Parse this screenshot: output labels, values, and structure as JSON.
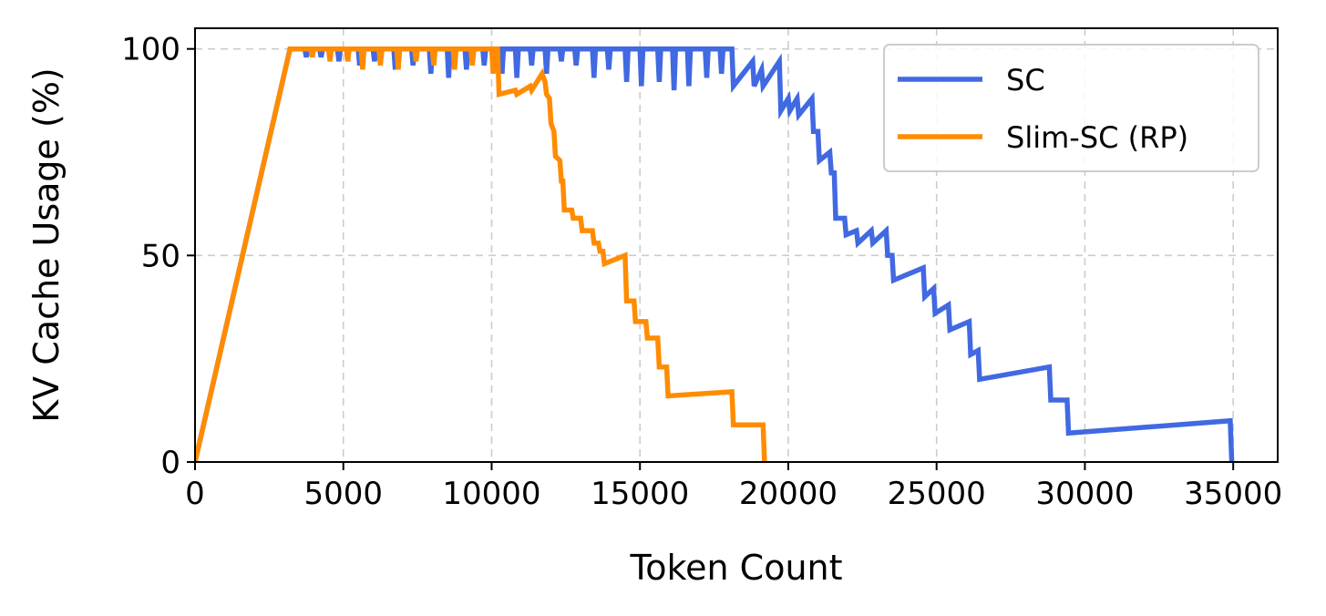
{
  "chart_data": {
    "type": "line",
    "title": "",
    "xlabel": "Token Count",
    "ylabel": "KV Cache Usage (%)",
    "xlim": [
      0,
      36500
    ],
    "ylim": [
      0,
      105
    ],
    "xticks": [
      0,
      5000,
      10000,
      15000,
      20000,
      25000,
      30000,
      35000
    ],
    "xtick_labels": [
      "0",
      "5000",
      "10000",
      "15000",
      "20000",
      "25000",
      "30000",
      "35000"
    ],
    "yticks": [
      0,
      50,
      100
    ],
    "ytick_labels": [
      "0",
      "50",
      "100"
    ],
    "grid": true,
    "legend_position": "top-right",
    "series": [
      {
        "name": "SC",
        "color": "#4169e1",
        "points": [
          [
            0,
            0
          ],
          [
            3200,
            100
          ],
          [
            3700,
            100
          ],
          [
            3750,
            98
          ],
          [
            3800,
            100
          ],
          [
            4200,
            100
          ],
          [
            4250,
            98
          ],
          [
            4300,
            100
          ],
          [
            4800,
            100
          ],
          [
            4850,
            97
          ],
          [
            4900,
            100
          ],
          [
            5500,
            100
          ],
          [
            5550,
            96
          ],
          [
            5600,
            100
          ],
          [
            6000,
            100
          ],
          [
            6050,
            97
          ],
          [
            6100,
            100
          ],
          [
            6700,
            100
          ],
          [
            6750,
            95
          ],
          [
            6800,
            100
          ],
          [
            7300,
            100
          ],
          [
            7350,
            96
          ],
          [
            7400,
            100
          ],
          [
            7900,
            100
          ],
          [
            7950,
            94
          ],
          [
            8000,
            100
          ],
          [
            8500,
            100
          ],
          [
            8550,
            93
          ],
          [
            8600,
            100
          ],
          [
            9100,
            100
          ],
          [
            9150,
            95
          ],
          [
            9200,
            100
          ],
          [
            9700,
            100
          ],
          [
            9750,
            96
          ],
          [
            9800,
            100
          ],
          [
            10300,
            100
          ],
          [
            10350,
            94
          ],
          [
            10400,
            100
          ],
          [
            10800,
            100
          ],
          [
            10850,
            93
          ],
          [
            10900,
            100
          ],
          [
            11300,
            100
          ],
          [
            11350,
            96
          ],
          [
            11400,
            100
          ],
          [
            11800,
            100
          ],
          [
            11850,
            94
          ],
          [
            11900,
            100
          ],
          [
            12300,
            100
          ],
          [
            12350,
            97
          ],
          [
            12400,
            100
          ],
          [
            12800,
            100
          ],
          [
            12850,
            96
          ],
          [
            12900,
            100
          ],
          [
            13400,
            100
          ],
          [
            13450,
            93
          ],
          [
            13500,
            100
          ],
          [
            13900,
            100
          ],
          [
            13950,
            95
          ],
          [
            14000,
            100
          ],
          [
            14500,
            100
          ],
          [
            14550,
            92
          ],
          [
            14600,
            100
          ],
          [
            15000,
            100
          ],
          [
            15050,
            91
          ],
          [
            15100,
            100
          ],
          [
            15600,
            100
          ],
          [
            15650,
            92
          ],
          [
            15700,
            100
          ],
          [
            16100,
            100
          ],
          [
            16150,
            90
          ],
          [
            16200,
            100
          ],
          [
            16600,
            100
          ],
          [
            16650,
            91
          ],
          [
            16700,
            100
          ],
          [
            17200,
            100
          ],
          [
            17250,
            93
          ],
          [
            17300,
            100
          ],
          [
            17700,
            100
          ],
          [
            17750,
            94
          ],
          [
            17800,
            100
          ],
          [
            18100,
            100
          ],
          [
            18150,
            91
          ],
          [
            18800,
            97
          ],
          [
            18850,
            91
          ],
          [
            19100,
            95
          ],
          [
            19150,
            91
          ],
          [
            19700,
            97
          ],
          [
            19750,
            85
          ],
          [
            20000,
            88
          ],
          [
            20050,
            85
          ],
          [
            20300,
            88
          ],
          [
            20350,
            84
          ],
          [
            20800,
            88
          ],
          [
            20850,
            80
          ],
          [
            21000,
            80
          ],
          [
            21050,
            73
          ],
          [
            21400,
            75
          ],
          [
            21450,
            70
          ],
          [
            21550,
            70
          ],
          [
            21600,
            59
          ],
          [
            21900,
            59
          ],
          [
            21950,
            55
          ],
          [
            22300,
            56
          ],
          [
            22350,
            53
          ],
          [
            22800,
            56
          ],
          [
            22850,
            53
          ],
          [
            23300,
            56
          ],
          [
            23350,
            50
          ],
          [
            23500,
            50
          ],
          [
            23550,
            44
          ],
          [
            24550,
            47
          ],
          [
            24600,
            40
          ],
          [
            24900,
            42
          ],
          [
            24950,
            36
          ],
          [
            25400,
            38
          ],
          [
            25450,
            32
          ],
          [
            26100,
            34
          ],
          [
            26150,
            26
          ],
          [
            26400,
            27
          ],
          [
            26450,
            20
          ],
          [
            28800,
            23
          ],
          [
            28850,
            15
          ],
          [
            29400,
            15
          ],
          [
            29450,
            7
          ],
          [
            34900,
            10
          ],
          [
            34950,
            0
          ]
        ]
      },
      {
        "name": "Slim-SC (RP)",
        "color": "#ff8c00",
        "points": [
          [
            0,
            0
          ],
          [
            3200,
            100
          ],
          [
            3900,
            100
          ],
          [
            3950,
            98
          ],
          [
            4000,
            100
          ],
          [
            4500,
            100
          ],
          [
            4550,
            97
          ],
          [
            4600,
            100
          ],
          [
            5100,
            100
          ],
          [
            5150,
            97
          ],
          [
            5200,
            100
          ],
          [
            5600,
            100
          ],
          [
            5650,
            95
          ],
          [
            5700,
            100
          ],
          [
            6200,
            100
          ],
          [
            6250,
            96
          ],
          [
            6300,
            100
          ],
          [
            6800,
            100
          ],
          [
            6850,
            95
          ],
          [
            6900,
            100
          ],
          [
            7400,
            100
          ],
          [
            7450,
            97
          ],
          [
            7500,
            100
          ],
          [
            8000,
            100
          ],
          [
            8050,
            96
          ],
          [
            8100,
            100
          ],
          [
            8700,
            100
          ],
          [
            8750,
            95
          ],
          [
            8800,
            100
          ],
          [
            9300,
            100
          ],
          [
            9350,
            96
          ],
          [
            9400,
            100
          ],
          [
            10000,
            100
          ],
          [
            10050,
            94
          ],
          [
            10100,
            100
          ],
          [
            10200,
            100
          ],
          [
            10250,
            89
          ],
          [
            10800,
            90
          ],
          [
            10850,
            89
          ],
          [
            11300,
            91
          ],
          [
            11350,
            90
          ],
          [
            11700,
            94
          ],
          [
            11800,
            92
          ],
          [
            11850,
            89
          ],
          [
            11950,
            88
          ],
          [
            12000,
            82
          ],
          [
            12100,
            80
          ],
          [
            12150,
            74
          ],
          [
            12300,
            73
          ],
          [
            12350,
            68
          ],
          [
            12400,
            68
          ],
          [
            12450,
            61
          ],
          [
            12700,
            61
          ],
          [
            12750,
            59
          ],
          [
            13000,
            59
          ],
          [
            13050,
            56
          ],
          [
            13400,
            56
          ],
          [
            13450,
            53
          ],
          [
            13600,
            53
          ],
          [
            13650,
            51
          ],
          [
            13750,
            51
          ],
          [
            13800,
            48
          ],
          [
            14500,
            50
          ],
          [
            14550,
            39
          ],
          [
            14800,
            39
          ],
          [
            14850,
            34
          ],
          [
            15200,
            34
          ],
          [
            15250,
            30
          ],
          [
            15600,
            30
          ],
          [
            15650,
            23
          ],
          [
            15900,
            23
          ],
          [
            15950,
            16
          ],
          [
            18100,
            17
          ],
          [
            18150,
            9
          ],
          [
            19150,
            9
          ],
          [
            19200,
            0
          ]
        ]
      }
    ]
  }
}
